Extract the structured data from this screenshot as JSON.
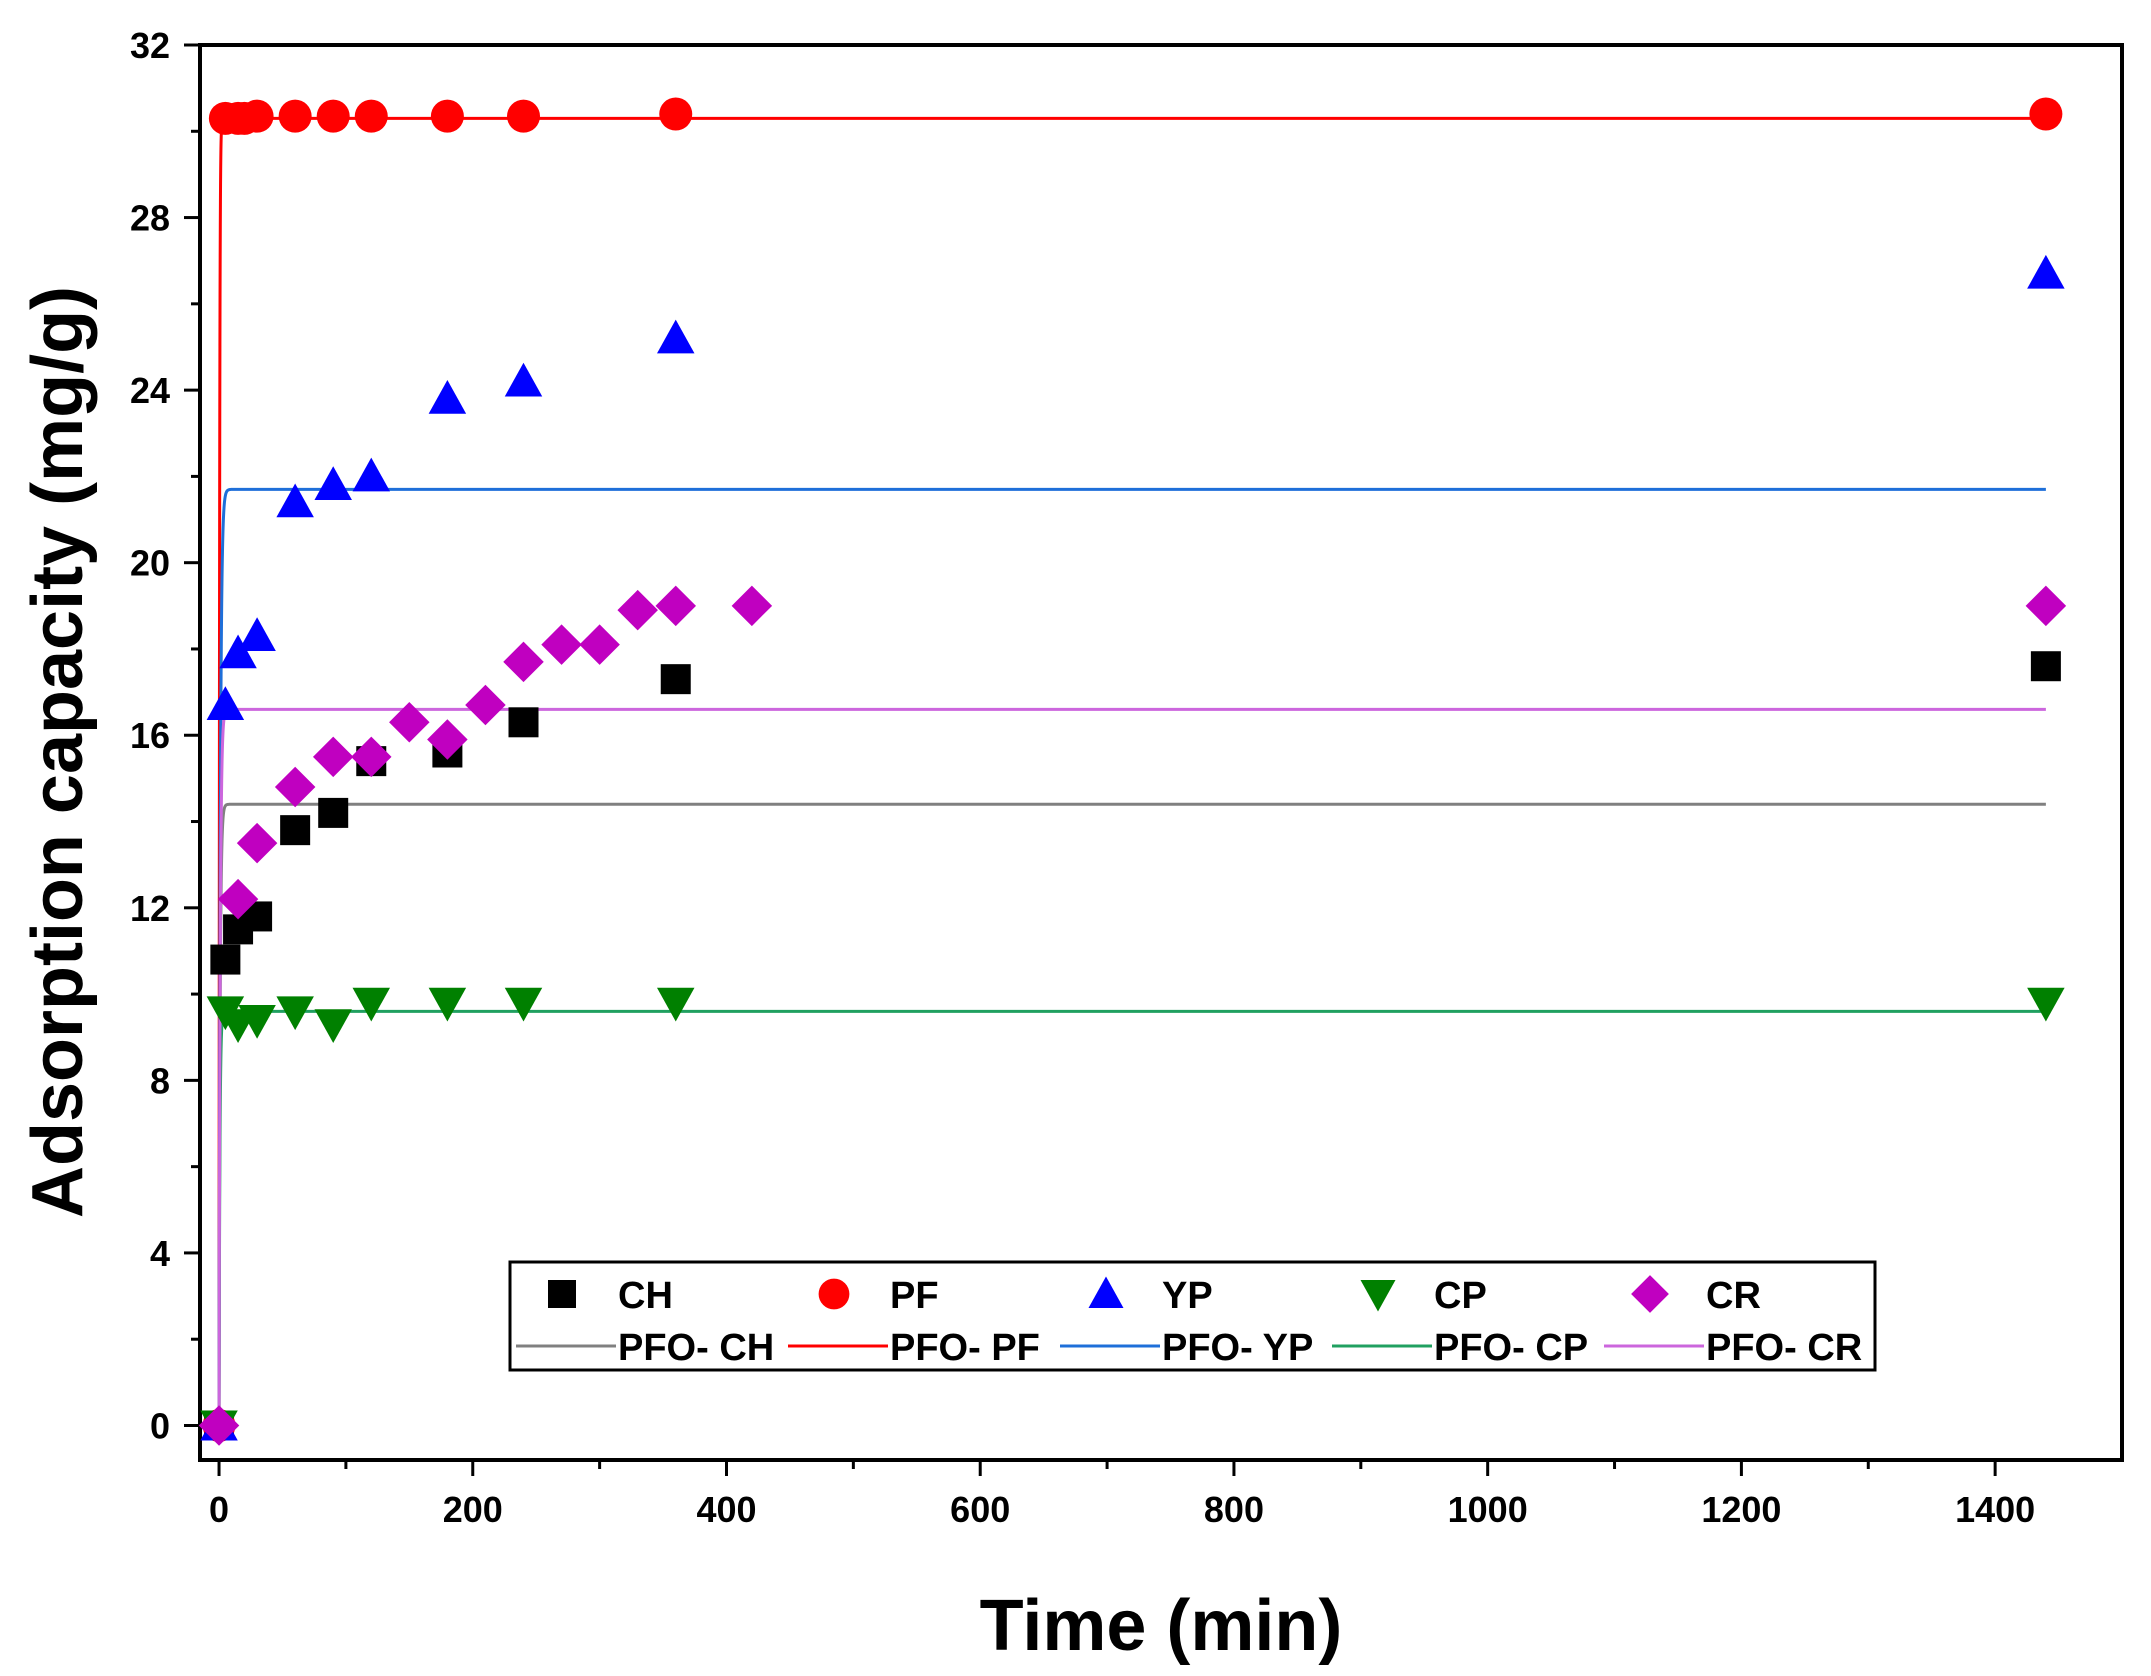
{
  "chart_data": {
    "type": "scatter",
    "title": "",
    "xlabel": "Time (min)",
    "ylabel": "Adsorption capacity (mg/g)",
    "xlim": [
      -15,
      1500
    ],
    "ylim": [
      -0.8,
      32
    ],
    "xticks": [
      0,
      200,
      400,
      600,
      800,
      1000,
      1200,
      1400
    ],
    "yticks": [
      0,
      4,
      8,
      12,
      16,
      20,
      24,
      28,
      32
    ],
    "xtick_labels": [
      "0",
      "200",
      "400",
      "600",
      "800",
      "1000",
      "1200",
      "1400"
    ],
    "ytick_labels": [
      "0",
      "4",
      "8",
      "12",
      "16",
      "20",
      "24",
      "28",
      "32"
    ],
    "legend_position": "bottom-center",
    "series": [
      {
        "name": "CH",
        "marker": "square",
        "color": "#000000",
        "x": [
          0,
          5,
          15,
          30,
          60,
          90,
          120,
          180,
          240,
          360,
          1440
        ],
        "y": [
          0,
          10.8,
          11.5,
          11.8,
          13.8,
          14.2,
          15.4,
          15.6,
          16.3,
          17.3,
          17.6
        ]
      },
      {
        "name": "PF",
        "marker": "circle",
        "color": "#ff0000",
        "x": [
          0,
          5,
          15,
          20,
          30,
          60,
          90,
          120,
          180,
          240,
          360,
          1440
        ],
        "y": [
          0,
          30.3,
          30.3,
          30.3,
          30.35,
          30.35,
          30.35,
          30.35,
          30.35,
          30.35,
          30.4,
          30.4
        ]
      },
      {
        "name": "YP",
        "marker": "triangle-up",
        "color": "#0000ff",
        "x": [
          0,
          5,
          15,
          30,
          60,
          90,
          120,
          180,
          240,
          360,
          1440
        ],
        "y": [
          0,
          16.7,
          17.9,
          18.3,
          21.4,
          21.8,
          22.0,
          23.8,
          24.2,
          25.2,
          26.7
        ]
      },
      {
        "name": "CP",
        "marker": "triangle-down",
        "color": "#008000",
        "x": [
          0,
          5,
          15,
          30,
          60,
          90,
          120,
          180,
          240,
          360,
          1440
        ],
        "y": [
          0,
          9.6,
          9.3,
          9.4,
          9.6,
          9.3,
          9.8,
          9.8,
          9.8,
          9.8,
          9.8
        ]
      },
      {
        "name": "CR",
        "marker": "diamond",
        "color": "#c000c0",
        "x": [
          0,
          15,
          30,
          60,
          90,
          120,
          150,
          180,
          210,
          240,
          270,
          300,
          330,
          360,
          420,
          1440
        ],
        "y": [
          0,
          12.2,
          13.5,
          14.8,
          15.5,
          15.5,
          16.3,
          15.9,
          16.7,
          17.7,
          18.1,
          18.1,
          18.9,
          19.0,
          19.0,
          19.0
        ]
      }
    ],
    "fits": [
      {
        "name": "PFO- CH",
        "color": "#808080",
        "qe": 14.4,
        "k": 1.2
      },
      {
        "name": "PFO- PF",
        "color": "#ff0000",
        "qe": 30.3,
        "k": 2.5
      },
      {
        "name": "PFO- YP",
        "color": "#1e6fd9",
        "qe": 21.7,
        "k": 1.0
      },
      {
        "name": "PFO- CP",
        "color": "#20a060",
        "qe": 9.6,
        "k": 1.5
      },
      {
        "name": "PFO- CR",
        "color": "#cc66dd",
        "qe": 16.6,
        "k": 1.1
      }
    ],
    "fit_x_max": 1440
  }
}
